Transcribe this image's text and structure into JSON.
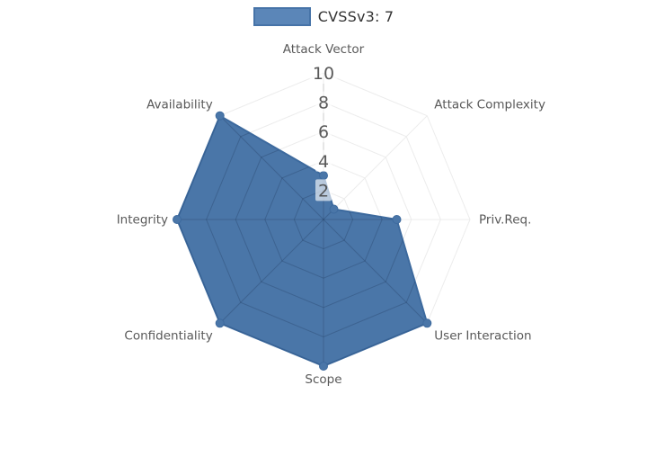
{
  "legend": {
    "label": "CVSSv3: 7"
  },
  "colors": {
    "series_fill": "#4a76a8",
    "series_line": "#3d6a9e",
    "legend_swatch_fill": "#5b86b8",
    "legend_swatch_border": "#4673a8",
    "inner_web_line": "rgba(23,43,77,0.25)",
    "outer_web_line": "#ececec",
    "radial_axis_line": "#cccccc",
    "tick_chip_bg": "rgba(255,255,255,0.62)",
    "tick_text": "#484848",
    "axis_label_text": "#595959",
    "legend_text": "#333333"
  },
  "chart_data": {
    "type": "radar",
    "title": "",
    "categories": [
      "Attack Vector",
      "Attack Complexity",
      "Priv.Req.",
      "User Interaction",
      "Scope",
      "Confidentiality",
      "Integrity",
      "Availability"
    ],
    "series": [
      {
        "name": "CVSSv3: 7",
        "values": [
          3,
          1,
          5,
          10,
          10,
          10,
          10,
          10
        ]
      }
    ],
    "radial_ticks": [
      2,
      4,
      6,
      8,
      10
    ],
    "rmax": 10,
    "grid": "polygon-web",
    "grid_rings": 5,
    "legend_position": "top-center",
    "markers": "circle-at-vertices"
  }
}
